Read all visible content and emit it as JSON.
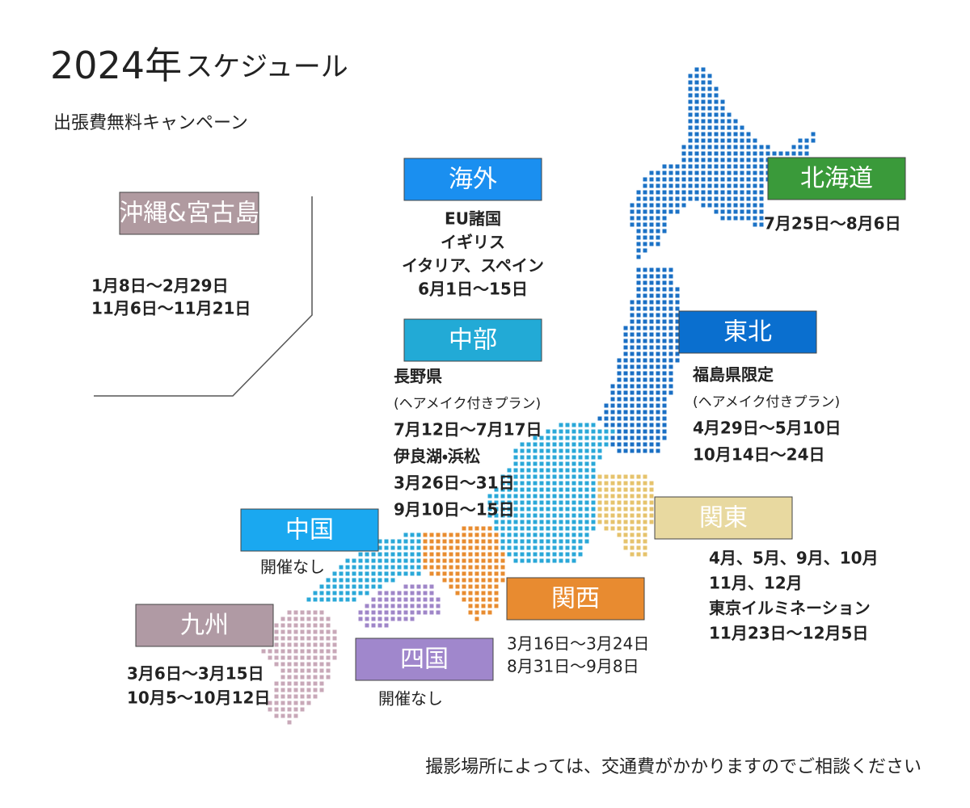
{
  "title": {
    "main": "2024年",
    "sub": "スケジュール"
  },
  "subtitle": "出張費無料キャンペーン",
  "regions": [
    {
      "label": "沖縄&宮古島",
      "color": "#b09aa0",
      "lines": [
        "1月8日〜2月29日",
        "11月6日〜11月21日"
      ]
    },
    {
      "label": "海外",
      "color": "#1a8ff0",
      "lines": [
        "EU諸国",
        "イギリス",
        "イタリア、スペイン",
        "6月1日〜15日"
      ]
    },
    {
      "label": "北海道",
      "color": "#3a9a3a",
      "lines": [
        "7月25日〜8月6日"
      ]
    },
    {
      "label": "東北",
      "color": "#0a6fcf",
      "lines": [
        "福島県限定",
        "(ヘアメイク付きプラン)",
        "4月29日〜5月10日",
        "10月14日〜24日"
      ]
    },
    {
      "label": "中部",
      "color": "#22aad6",
      "lines": [
        "長野県",
        "(ヘアメイク付きプラン)",
        "7月12日〜7月17日",
        "伊良湖・浜松",
        "3月26日〜31日",
        "9月10日〜15日"
      ]
    },
    {
      "label": "関東",
      "color": "#e8d9a0",
      "lines": [
        "4月、5月、9月、10月",
        "11月、12月",
        "東京イルミネーション",
        "11月23日〜12月5日"
      ]
    },
    {
      "label": "中国",
      "color": "#1aa8f0",
      "lines": [
        "開催なし"
      ]
    },
    {
      "label": "関西",
      "color": "#e88b30",
      "lines": [
        "3月16日〜3月24日",
        "8月31日〜9月8日"
      ]
    },
    {
      "label": "九州",
      "color": "#b09aa4",
      "lines": [
        "3月6日〜3月15日",
        "10月5〜10月12日"
      ]
    },
    {
      "label": "四国",
      "color": "#a087cc",
      "lines": [
        "開催なし"
      ]
    }
  ],
  "footnote": "撮影場所によっては、交通費がかかりますのでご相談ください"
}
